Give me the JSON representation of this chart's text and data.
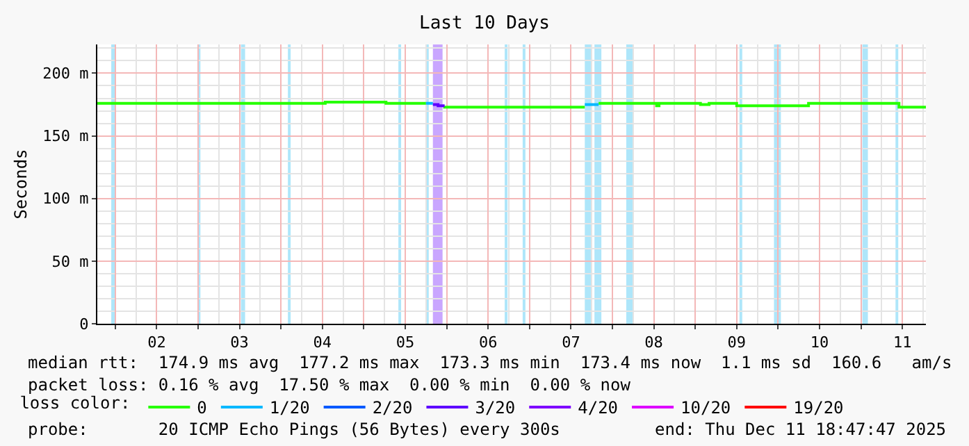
{
  "chart_data": {
    "type": "step",
    "title": "Last 10 Days",
    "ylabel": "Seconds",
    "legend_title": "loss color:",
    "legend": "bottom",
    "series": [
      {
        "name": "0",
        "color": "#26ff00",
        "x": [
          "2025-12-01T18:48",
          "2025-12-04T12:48",
          "2025-12-04T12:49",
          "2025-12-05T06:24",
          "2025-12-05T06:25",
          "2025-12-05T18:00",
          "2025-12-05T20:01",
          "2025-12-05T23:00",
          "2025-12-07T16:00",
          "2025-12-07T16:01",
          "2025-12-07T20:00",
          "2025-12-08T12:48",
          "2025-12-08T13:30",
          "2025-12-09T01:30",
          "2025-12-09T04:00",
          "2025-12-09T12:00",
          "2025-12-10T08:48",
          "2025-12-11T11:00",
          "2025-12-11T18:48"
        ],
        "values": [
          176,
          176,
          177,
          177,
          176,
          176,
          null,
          173,
          173,
          null,
          176,
          174,
          176,
          175,
          176,
          174,
          176,
          173,
          173
        ]
      },
      {
        "name": "1/20",
        "color": "#00b8ff",
        "x": [
          "2025-12-05T18:00",
          "2025-12-05T20:00",
          "2025-12-05T20:01",
          "2025-12-07T16:00",
          "2025-12-07T20:00"
        ],
        "values": [
          176,
          176,
          null,
          175,
          175
        ]
      },
      {
        "name": "2/20",
        "color": "#0059ff"
      },
      {
        "name": "3/20",
        "color": "#5e00ff",
        "x": [
          "2025-12-05T20:00",
          "2025-12-05T21:30",
          "2025-12-05T23:00"
        ],
        "values": [
          175,
          174,
          173
        ]
      },
      {
        "name": "4/20",
        "color": "#7e00ff"
      },
      {
        "name": "10/20",
        "color": "#dd00ff"
      },
      {
        "name": "19/20",
        "color": "#ff0000"
      }
    ],
    "bands": [
      {
        "axis": "x",
        "from": "2025-12-01T22:50",
        "to": "2025-12-02T00:00",
        "color": "#aee6fa"
      },
      {
        "axis": "x",
        "from": "2025-12-03T00:00",
        "to": "2025-12-03T00:40",
        "color": "#aee6fa"
      },
      {
        "axis": "x",
        "from": "2025-12-03T12:24",
        "to": "2025-12-03T13:36",
        "color": "#aee6fa"
      },
      {
        "axis": "x",
        "from": "2025-12-04T02:00",
        "to": "2025-12-04T02:48",
        "color": "#aee6fa"
      },
      {
        "axis": "x",
        "from": "2025-12-05T10:00",
        "to": "2025-12-05T10:48",
        "color": "#aee6fa"
      },
      {
        "axis": "x",
        "from": "2025-12-05T18:00",
        "to": "2025-12-05T18:48",
        "color": "#aee6fa"
      },
      {
        "axis": "x",
        "from": "2025-12-05T20:00",
        "to": "2025-12-05T22:48",
        "color": "#c9a6ff"
      },
      {
        "axis": "x",
        "from": "2025-12-06T16:48",
        "to": "2025-12-06T17:36",
        "color": "#aee6fa"
      },
      {
        "axis": "x",
        "from": "2025-12-06T22:00",
        "to": "2025-12-06T22:48",
        "color": "#aee6fa"
      },
      {
        "axis": "x",
        "from": "2025-12-07T16:00",
        "to": "2025-12-07T18:00",
        "color": "#aee6fa"
      },
      {
        "axis": "x",
        "from": "2025-12-07T18:48",
        "to": "2025-12-07T20:48",
        "color": "#aee6fa"
      },
      {
        "axis": "x",
        "from": "2025-12-08T04:00",
        "to": "2025-12-08T06:00",
        "color": "#aee6fa"
      },
      {
        "axis": "x",
        "from": "2025-12-09T12:48",
        "to": "2025-12-09T13:36",
        "color": "#aee6fa"
      },
      {
        "axis": "x",
        "from": "2025-12-09T22:48",
        "to": "2025-12-10T00:48",
        "color": "#aee6fa"
      },
      {
        "axis": "x",
        "from": "2025-12-11T00:24",
        "to": "2025-12-11T02:00",
        "color": "#aee6fa"
      },
      {
        "axis": "x",
        "from": "2025-12-11T10:00",
        "to": "2025-12-11T10:48",
        "color": "#aee6fa"
      }
    ],
    "xlim": [
      "2025-12-01T18:48",
      "2025-12-11T18:48"
    ],
    "xticks": [
      {
        "value": "2025-12-02T00:00",
        "label": null
      },
      {
        "value": "2025-12-02T12:00",
        "label": "02"
      },
      {
        "value": "2025-12-03T00:00",
        "label": null
      },
      {
        "value": "2025-12-03T12:00",
        "label": "03"
      },
      {
        "value": "2025-12-04T00:00",
        "label": null
      },
      {
        "value": "2025-12-04T12:00",
        "label": "04"
      },
      {
        "value": "2025-12-05T00:00",
        "label": null
      },
      {
        "value": "2025-12-05T12:00",
        "label": "05"
      },
      {
        "value": "2025-12-06T00:00",
        "label": null
      },
      {
        "value": "2025-12-06T12:00",
        "label": "06"
      },
      {
        "value": "2025-12-07T00:00",
        "label": null
      },
      {
        "value": "2025-12-07T12:00",
        "label": "07"
      },
      {
        "value": "2025-12-08T00:00",
        "label": null
      },
      {
        "value": "2025-12-08T12:00",
        "label": "08"
      },
      {
        "value": "2025-12-09T00:00",
        "label": null
      },
      {
        "value": "2025-12-09T12:00",
        "label": "09"
      },
      {
        "value": "2025-12-10T00:00",
        "label": null
      },
      {
        "value": "2025-12-10T12:00",
        "label": "10"
      },
      {
        "value": "2025-12-11T00:00",
        "label": null
      },
      {
        "value": "2025-12-11T12:00",
        "label": "11"
      }
    ],
    "ylim": [
      0,
      223
    ],
    "yticks": [
      0,
      {
        "value": 50,
        "label": "50 m"
      },
      {
        "value": 100,
        "label": "100 m"
      },
      {
        "value": 150,
        "label": "150 m"
      },
      {
        "value": 200,
        "label": "200 m"
      }
    ],
    "grid": true,
    "annotations": [
      "median rtt:  174.9 ms avg  177.2 ms max  173.3 ms min  173.4 ms now  1.1 ms sd  160.6   am/s",
      "packet loss: 0.16 % avg  17.50 % max  0.00 % min  0.00 % now",
      "probe:       20 ICMP Echo Pings (56 Bytes) every 300s",
      "end: Thu Dec 11 18:47:47 2025"
    ]
  }
}
